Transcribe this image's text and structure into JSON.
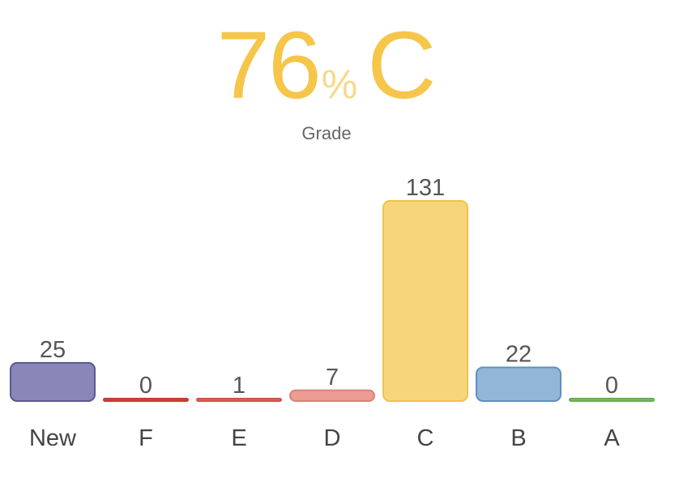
{
  "summary": {
    "score": "76",
    "percent_sign": "%",
    "letter": "C",
    "label": "Grade"
  },
  "chart_data": {
    "type": "bar",
    "categories": [
      "New",
      "F",
      "E",
      "D",
      "C",
      "B",
      "A"
    ],
    "values": [
      25,
      0,
      1,
      7,
      131,
      22,
      0
    ],
    "value_labels": [
      "25",
      "0",
      "1",
      "7",
      "131",
      "22",
      "0"
    ],
    "colors": [
      {
        "fill": "#8a87b8",
        "stroke": "#5a5790"
      },
      {
        "fill": "#d9473a",
        "stroke": "#c33a2e"
      },
      {
        "fill": "#e26457",
        "stroke": "#cf5347"
      },
      {
        "fill": "#ec9c92",
        "stroke": "#d98377"
      },
      {
        "fill": "#f7d57a",
        "stroke": "#efc24a"
      },
      {
        "fill": "#92b6d6",
        "stroke": "#5f90bd"
      },
      {
        "fill": "#7cc36d",
        "stroke": "#62ad52"
      }
    ],
    "title": "",
    "xlabel": "",
    "ylabel": "",
    "grid": false
  }
}
